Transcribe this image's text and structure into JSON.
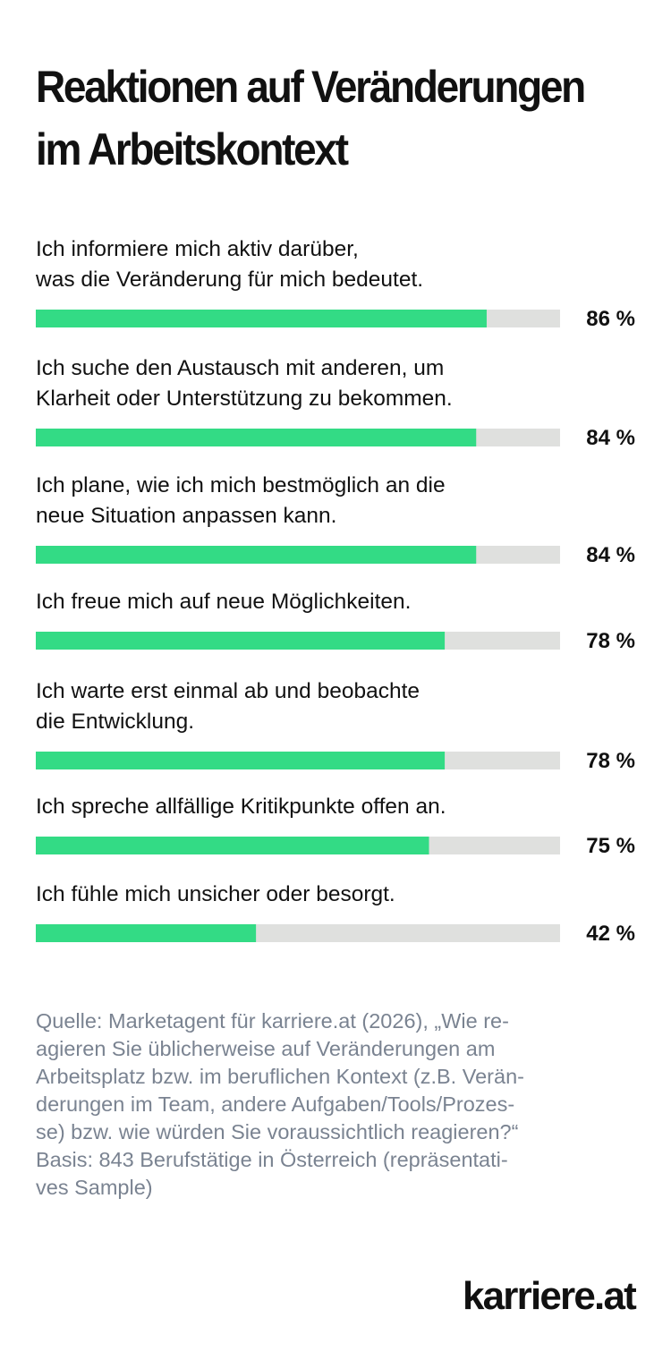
{
  "title_lines": [
    "Reaktionen auf Veränderungen",
    "im Arbeitskontext"
  ],
  "chart_data": {
    "type": "bar",
    "orientation": "horizontal",
    "unit": "%",
    "xlim": [
      0,
      100
    ],
    "categories": [
      [
        "Ich informiere mich aktiv darüber,",
        "was die Veränderung für mich bedeutet."
      ],
      [
        "Ich suche den Austausch mit anderen, um",
        "Klarheit oder Unterstützung zu bekommen."
      ],
      [
        "Ich plane, wie ich mich bestmöglich an die",
        "neue Situation anpassen kann."
      ],
      [
        "Ich freue mich auf neue Möglichkeiten."
      ],
      [
        "Ich warte erst einmal ab und beobachte",
        "die Entwicklung."
      ],
      [
        "Ich spreche allfällige Kritikpunkte offen an."
      ],
      [
        "Ich fühle mich unsicher oder besorgt."
      ]
    ],
    "values": [
      86,
      84,
      84,
      78,
      78,
      75,
      42
    ],
    "value_labels": [
      "86 %",
      "84 %",
      "84 %",
      "78 %",
      "78 %",
      "75 %",
      "42 %"
    ],
    "bar_color": "#33db85",
    "track_color": "#dfe0de",
    "label_color": "#111111"
  },
  "source_lines": [
    "Quelle: Marketagent für karriere.at (2026), „Wie re-",
    "agieren Sie üblicherweise auf Veränderungen am",
    "Arbeitsplatz bzw. im beruflichen Kontext (z.B. Verän-",
    "derungen im Team, andere Aufgaben/Tools/Prozes-",
    "se) bzw. wie würden Sie voraussichtlich reagieren?“",
    "Basis: 843 Berufstätige in Österreich (repräsentati-",
    "ves Sample)"
  ],
  "brand": "karriere.at"
}
